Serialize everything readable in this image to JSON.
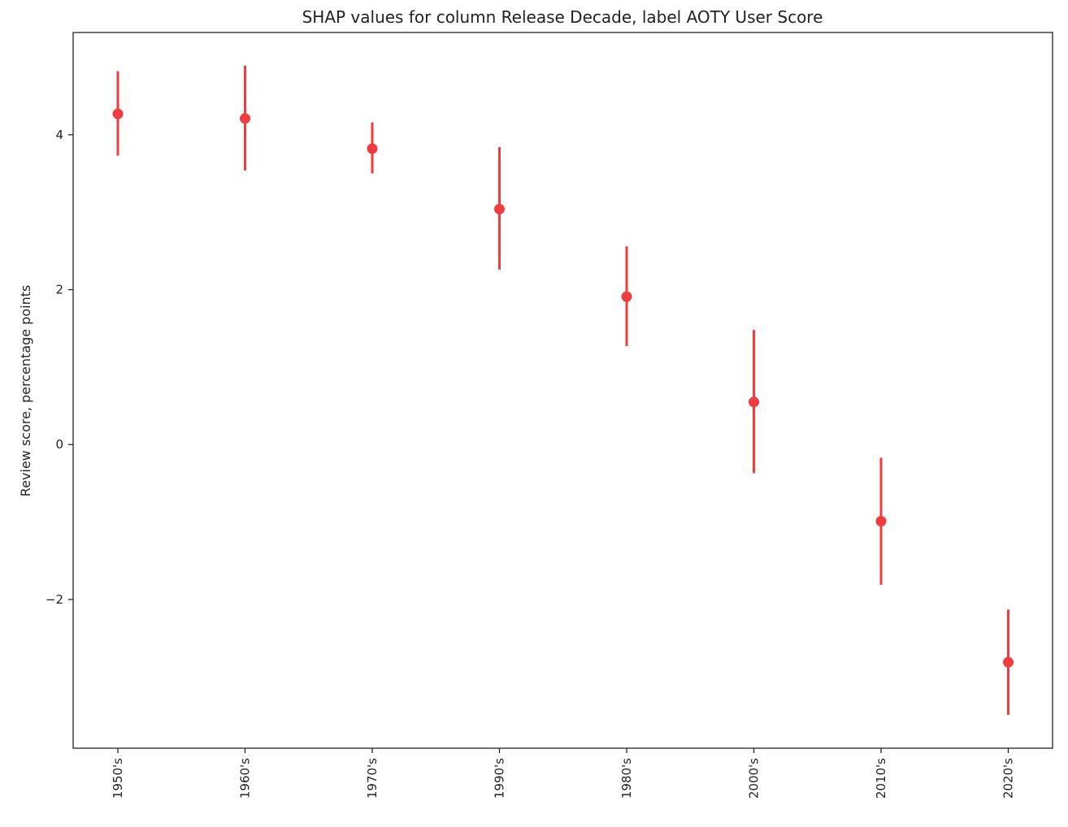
{
  "chart_data": {
    "type": "scatter",
    "title": "SHAP values for column Release Decade, label AOTY User Score",
    "xlabel": "",
    "ylabel": "Review score, percentage points",
    "categories": [
      "1950's",
      "1960's",
      "1970's",
      "1990's",
      "1980's",
      "2000's",
      "2010's",
      "2020's"
    ],
    "series": [
      {
        "values": [
          4.27,
          4.21,
          3.82,
          3.04,
          1.91,
          0.55,
          -0.99,
          -2.81
        ],
        "error_low": [
          3.73,
          3.54,
          3.5,
          2.26,
          1.27,
          -0.37,
          -1.81,
          -3.49
        ],
        "error_high": [
          4.82,
          4.89,
          4.16,
          3.84,
          2.56,
          1.48,
          -0.17,
          -2.13
        ]
      }
    ],
    "ylim": [
      -3.92,
      5.32
    ],
    "yticks": [
      -2,
      0,
      2,
      4
    ],
    "ytick_labels": [
      "−2",
      "0",
      "2",
      "4"
    ],
    "grid": false,
    "colors": {
      "marker": "#f03c3c",
      "axis": "#222222"
    }
  }
}
